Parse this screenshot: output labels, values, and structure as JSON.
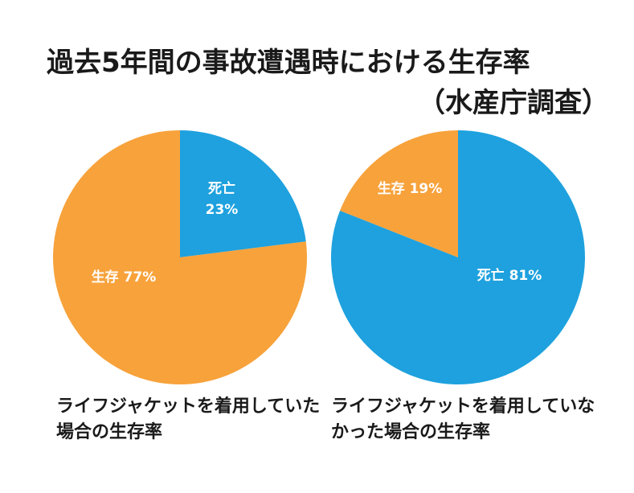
{
  "title": "過去5年間の事故遭遇時における生存率",
  "source": "（水産庁調査）",
  "colors": {
    "death": "#1ea1de",
    "survival": "#f7a23b",
    "background": "#ffffff",
    "text": "#1a1a1a"
  },
  "chart_data": [
    {
      "type": "pie",
      "caption": "ライフジャケットを着用していた場合の生存率",
      "slices": [
        {
          "label": "死亡",
          "value": 23,
          "value_text": "23%",
          "color": "#1ea1de"
        },
        {
          "label": "生存",
          "value": 77,
          "value_text": "77%",
          "color": "#f7a23b"
        }
      ]
    },
    {
      "type": "pie",
      "caption": "ライフジャケットを着用していなかった場合の生存率",
      "slices": [
        {
          "label": "死亡",
          "value": 81,
          "value_text": "81%",
          "color": "#1ea1de"
        },
        {
          "label": "生存",
          "value": 19,
          "value_text": "19%",
          "color": "#f7a23b"
        }
      ]
    }
  ]
}
